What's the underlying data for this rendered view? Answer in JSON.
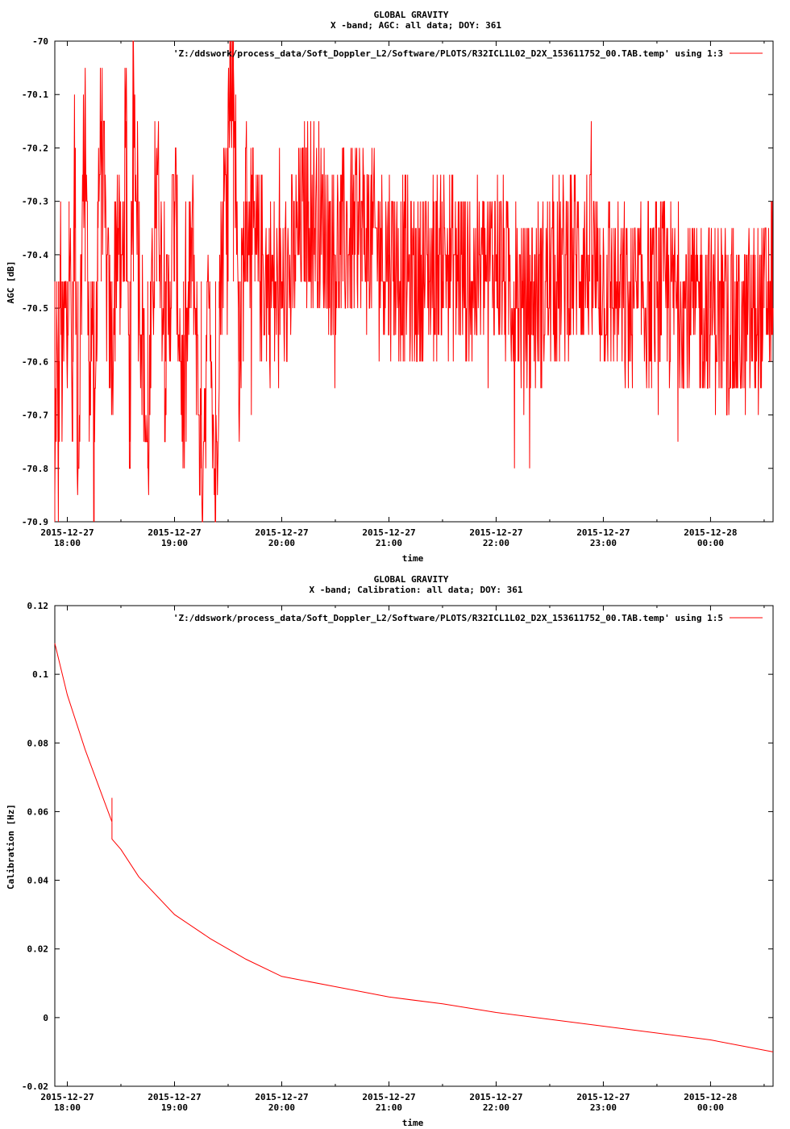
{
  "chart_data": [
    {
      "type": "line",
      "title": "GLOBAL GRAVITY",
      "subtitle": "X -band; AGC: all data; DOY: 361",
      "xlabel": "time",
      "ylabel": "AGC [dB]",
      "ylim": [
        -70.9,
        -70.0
      ],
      "yticks": [
        "-70",
        "-70.1",
        "-70.2",
        "-70.3",
        "-70.4",
        "-70.5",
        "-70.6",
        "-70.7",
        "-70.8",
        "-70.9"
      ],
      "ytick_values": [
        -70.0,
        -70.1,
        -70.2,
        -70.3,
        -70.4,
        -70.5,
        -70.6,
        -70.7,
        -70.8,
        -70.9
      ],
      "xlim": [
        "2015-12-27 17:53",
        "2015-12-28 00:35"
      ],
      "xticks": [
        {
          "date": "2015-12-27",
          "time": "18:00",
          "value": "2015-12-27 18:00"
        },
        {
          "date": "2015-12-27",
          "time": "19:00",
          "value": "2015-12-27 19:00"
        },
        {
          "date": "2015-12-27",
          "time": "20:00",
          "value": "2015-12-27 20:00"
        },
        {
          "date": "2015-12-27",
          "time": "21:00",
          "value": "2015-12-27 21:00"
        },
        {
          "date": "2015-12-27",
          "time": "22:00",
          "value": "2015-12-27 22:00"
        },
        {
          "date": "2015-12-27",
          "time": "23:00",
          "value": "2015-12-27 23:00"
        },
        {
          "date": "2015-12-28",
          "time": "00:00",
          "value": "2015-12-28 00:00"
        }
      ],
      "legend_position": "top-right",
      "series": [
        {
          "name": "'Z:/ddswork/process_data/Soft_Doppler_L2/Software/PLOTS/R32ICL1L02_D2X_153611752_00.TAB.temp' using 1:3",
          "color": "#ff0000",
          "description_levels": {
            "typical_range": [
              -70.7,
              -70.2
            ],
            "mode": -70.4
          },
          "points": [
            [
              "2015-12-27 17:53",
              -70.9
            ],
            [
              "2015-12-27 17:54",
              -70.55
            ],
            [
              "2015-12-27 17:55",
              -70.85
            ],
            [
              "2015-12-27 17:56",
              -70.4
            ],
            [
              "2015-12-27 17:57",
              -70.65
            ],
            [
              "2015-12-27 17:59",
              -70.5
            ],
            [
              "2015-12-27 18:00",
              -70.6
            ],
            [
              "2015-12-27 18:01",
              -70.3
            ],
            [
              "2015-12-27 18:03",
              -70.75
            ],
            [
              "2015-12-27 18:04",
              -70.2
            ],
            [
              "2015-12-27 18:06",
              -70.8
            ],
            [
              "2015-12-27 18:08",
              -70.4
            ],
            [
              "2015-12-27 18:10",
              -70.1
            ],
            [
              "2015-12-27 18:12",
              -70.6
            ],
            [
              "2015-12-27 18:14",
              -70.5
            ],
            [
              "2015-12-27 18:15",
              -70.9
            ],
            [
              "2015-12-27 18:17",
              -70.3
            ],
            [
              "2015-12-27 18:19",
              -70.15
            ],
            [
              "2015-12-27 18:22",
              -70.45
            ],
            [
              "2015-12-27 18:25",
              -70.6
            ],
            [
              "2015-12-27 18:28",
              -70.3
            ],
            [
              "2015-12-27 18:30",
              -70.5
            ],
            [
              "2015-12-27 18:33",
              -70.15
            ],
            [
              "2015-12-27 18:35",
              -70.75
            ],
            [
              "2015-12-27 18:37",
              -70.0
            ],
            [
              "2015-12-27 18:40",
              -70.4
            ],
            [
              "2015-12-27 18:45",
              -70.8
            ],
            [
              "2015-12-27 18:50",
              -70.2
            ],
            [
              "2015-12-27 18:55",
              -70.6
            ],
            [
              "2015-12-27 19:00",
              -70.3
            ],
            [
              "2015-12-27 19:05",
              -70.7
            ],
            [
              "2015-12-27 19:10",
              -70.35
            ],
            [
              "2015-12-27 19:15",
              -70.8
            ],
            [
              "2015-12-27 19:20",
              -70.45
            ],
            [
              "2015-12-27 19:23",
              -70.9
            ],
            [
              "2015-12-27 19:25",
              -70.5
            ],
            [
              "2015-12-27 19:30",
              -70.15
            ],
            [
              "2015-12-27 19:33",
              -70.0
            ],
            [
              "2015-12-27 19:36",
              -70.6
            ],
            [
              "2015-12-27 19:40",
              -70.3
            ],
            [
              "2015-12-27 19:45",
              -70.4
            ],
            [
              "2015-12-27 20:00",
              -70.5
            ],
            [
              "2015-12-27 20:15",
              -70.3
            ],
            [
              "2015-12-27 20:30",
              -70.4
            ],
            [
              "2015-12-27 20:45",
              -70.35
            ],
            [
              "2015-12-27 21:00",
              -70.4
            ],
            [
              "2015-12-27 21:15",
              -70.45
            ],
            [
              "2015-12-27 21:30",
              -70.4
            ],
            [
              "2015-12-27 21:45",
              -70.45
            ],
            [
              "2015-12-27 22:00",
              -70.4
            ],
            [
              "2015-12-27 22:15",
              -70.5
            ],
            [
              "2015-12-27 22:30",
              -70.45
            ],
            [
              "2015-12-27 22:45",
              -70.4
            ],
            [
              "2015-12-27 23:00",
              -70.45
            ],
            [
              "2015-12-27 23:15",
              -70.5
            ],
            [
              "2015-12-27 23:30",
              -70.45
            ],
            [
              "2015-12-27 23:45",
              -70.5
            ],
            [
              "2015-12-28 00:00",
              -70.5
            ],
            [
              "2015-12-28 00:15",
              -70.55
            ],
            [
              "2015-12-28 00:30",
              -70.5
            ],
            [
              "2015-12-28 00:35",
              -70.45
            ]
          ]
        }
      ]
    },
    {
      "type": "line",
      "title": "GLOBAL GRAVITY",
      "subtitle": "X -band; Calibration: all data; DOY: 361",
      "xlabel": "time",
      "ylabel": "Calibration [Hz]",
      "ylim": [
        -0.02,
        0.12
      ],
      "yticks": [
        "-0.02",
        "0",
        "0.02",
        "0.04",
        "0.06",
        "0.08",
        "0.1",
        "0.12"
      ],
      "ytick_values": [
        -0.02,
        0,
        0.02,
        0.04,
        0.06,
        0.08,
        0.1,
        0.12
      ],
      "xlim": [
        "2015-12-27 17:53",
        "2015-12-28 00:35"
      ],
      "xticks": [
        {
          "date": "2015-12-27",
          "time": "18:00",
          "value": "2015-12-27 18:00"
        },
        {
          "date": "2015-12-27",
          "time": "19:00",
          "value": "2015-12-27 19:00"
        },
        {
          "date": "2015-12-27",
          "time": "20:00",
          "value": "2015-12-27 20:00"
        },
        {
          "date": "2015-12-27",
          "time": "21:00",
          "value": "2015-12-27 21:00"
        },
        {
          "date": "2015-12-27",
          "time": "22:00",
          "value": "2015-12-27 22:00"
        },
        {
          "date": "2015-12-27",
          "time": "23:00",
          "value": "2015-12-27 23:00"
        },
        {
          "date": "2015-12-28",
          "time": "00:00",
          "value": "2015-12-28 00:00"
        }
      ],
      "legend_position": "top-right",
      "series": [
        {
          "name": "'Z:/ddswork/process_data/Soft_Doppler_L2/Software/PLOTS/R32ICL1L02_D2X_153611752_00.TAB.temp' using 1:5",
          "color": "#ff0000",
          "points": [
            [
              "2015-12-27 17:53",
              0.109
            ],
            [
              "2015-12-27 18:00",
              0.094
            ],
            [
              "2015-12-27 18:10",
              0.078
            ],
            [
              "2015-12-27 18:20",
              0.064
            ],
            [
              "2015-12-27 18:25",
              0.057
            ],
            [
              "2015-12-27 18:25",
              0.064
            ],
            [
              "2015-12-27 18:25",
              0.052
            ],
            [
              "2015-12-27 18:30",
              0.049
            ],
            [
              "2015-12-27 18:40",
              0.041
            ],
            [
              "2015-12-27 19:00",
              0.03
            ],
            [
              "2015-12-27 19:20",
              0.023
            ],
            [
              "2015-12-27 19:40",
              0.017
            ],
            [
              "2015-12-27 20:00",
              0.012
            ],
            [
              "2015-12-27 20:30",
              0.009
            ],
            [
              "2015-12-27 21:00",
              0.006
            ],
            [
              "2015-12-27 21:30",
              0.004
            ],
            [
              "2015-12-27 22:00",
              0.0015
            ],
            [
              "2015-12-27 22:30",
              -0.0005
            ],
            [
              "2015-12-27 23:00",
              -0.0025
            ],
            [
              "2015-12-27 23:30",
              -0.0045
            ],
            [
              "2015-12-28 00:00",
              -0.0065
            ],
            [
              "2015-12-28 00:20",
              -0.0085
            ],
            [
              "2015-12-28 00:35",
              -0.01
            ]
          ]
        }
      ]
    }
  ]
}
